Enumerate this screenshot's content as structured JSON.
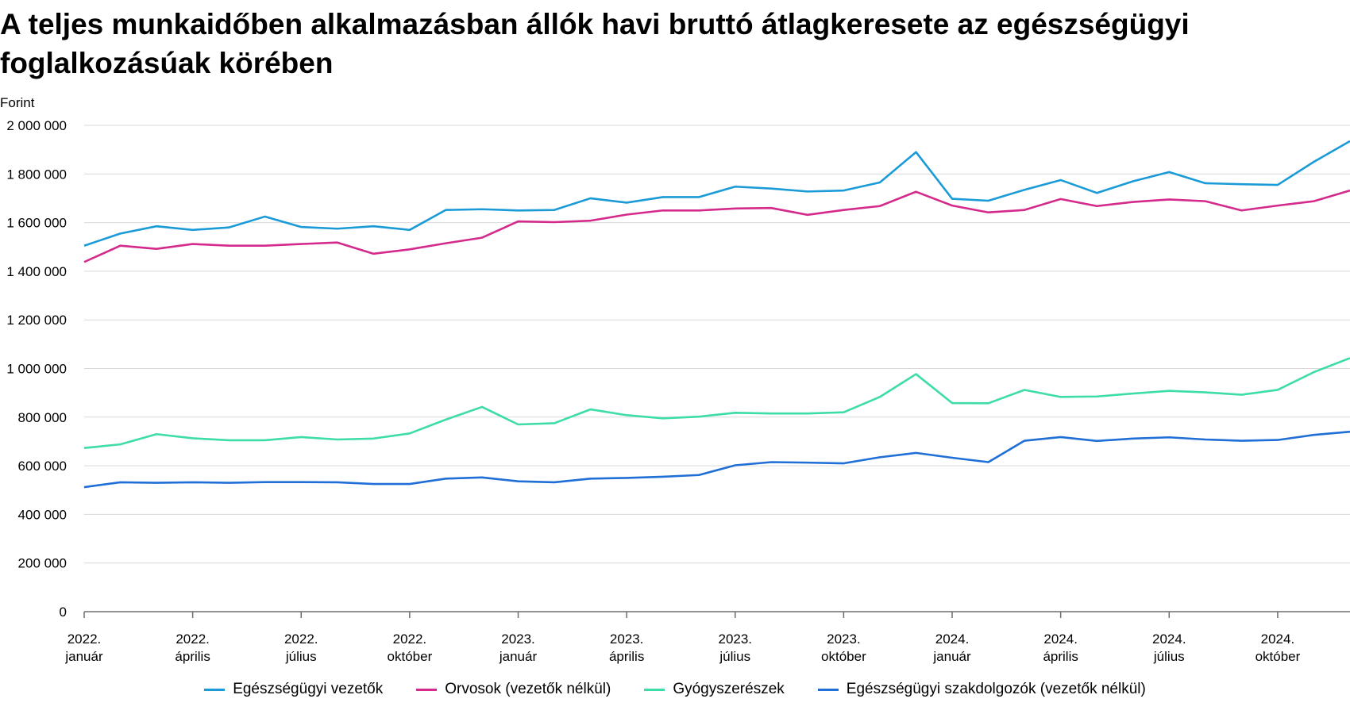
{
  "chart_data": {
    "type": "line",
    "title": "A teljes munkaidőben alkalmazásban állók havi bruttó átlagkeresete az egészségügyi foglalkozásúak körében",
    "ylabel": "Forint",
    "xlabel": "",
    "ylim": [
      0,
      2000000
    ],
    "yticks": [
      0,
      200000,
      400000,
      600000,
      800000,
      1000000,
      1200000,
      1400000,
      1600000,
      1800000,
      2000000
    ],
    "ytick_labels": [
      "0",
      "200 000",
      "400 000",
      "600 000",
      "800 000",
      "1 000 000",
      "1 200 000",
      "1 400 000",
      "1 600 000",
      "1 800 000",
      "2 000 000"
    ],
    "x_labels": [
      {
        "index": 0,
        "year": "2022.",
        "month": "január"
      },
      {
        "index": 3,
        "year": "2022.",
        "month": "április"
      },
      {
        "index": 6,
        "year": "2022.",
        "month": "július"
      },
      {
        "index": 9,
        "year": "2022.",
        "month": "október"
      },
      {
        "index": 12,
        "year": "2023.",
        "month": "január"
      },
      {
        "index": 15,
        "year": "2023.",
        "month": "április"
      },
      {
        "index": 18,
        "year": "2023.",
        "month": "július"
      },
      {
        "index": 21,
        "year": "2023.",
        "month": "október"
      },
      {
        "index": 24,
        "year": "2024.",
        "month": "január"
      },
      {
        "index": 27,
        "year": "2024.",
        "month": "április"
      },
      {
        "index": 30,
        "year": "2024.",
        "month": "július"
      },
      {
        "index": 33,
        "year": "2024.",
        "month": "október"
      }
    ],
    "n_points": 36,
    "grid": true,
    "legend_position": "bottom",
    "series": [
      {
        "name": "Egészségügyi vezetők",
        "color": "#1a9bd7",
        "values": [
          1505000,
          1555000,
          1585000,
          1570000,
          1580000,
          1625000,
          1582000,
          1575000,
          1585000,
          1570000,
          1652000,
          1655000,
          1650000,
          1652000,
          1700000,
          1682000,
          1705000,
          1705000,
          1748000,
          1740000,
          1728000,
          1732000,
          1765000,
          1890000,
          1698000,
          1690000,
          1735000,
          1775000,
          1722000,
          1770000,
          1808000,
          1762000,
          1758000,
          1755000,
          1850000,
          1935000
        ]
      },
      {
        "name": "Orvosok (vezetők nélkül)",
        "color": "#d42a8b",
        "values": [
          1438000,
          1505000,
          1492000,
          1512000,
          1505000,
          1505000,
          1512000,
          1518000,
          1472000,
          1490000,
          1515000,
          1538000,
          1605000,
          1602000,
          1608000,
          1633000,
          1650000,
          1650000,
          1658000,
          1660000,
          1632000,
          1652000,
          1668000,
          1727000,
          1670000,
          1642000,
          1652000,
          1697000,
          1668000,
          1685000,
          1695000,
          1688000,
          1650000,
          1670000,
          1688000,
          1732000
        ]
      },
      {
        "name": "Gyógyszerészek",
        "color": "#3ddca8",
        "values": [
          673000,
          688000,
          730000,
          713000,
          705000,
          705000,
          718000,
          708000,
          712000,
          733000,
          790000,
          842000,
          770000,
          775000,
          832000,
          808000,
          795000,
          802000,
          818000,
          815000,
          815000,
          820000,
          883000,
          977000,
          858000,
          857000,
          912000,
          883000,
          885000,
          897000,
          908000,
          902000,
          892000,
          912000,
          985000,
          1043000
        ]
      },
      {
        "name": "Egészségügyi szakdolgozók (vezetők nélkül)",
        "color": "#1f6fd6",
        "values": [
          512000,
          532000,
          530000,
          532000,
          530000,
          533000,
          533000,
          532000,
          525000,
          525000,
          547000,
          552000,
          536000,
          532000,
          547000,
          550000,
          555000,
          562000,
          602000,
          615000,
          613000,
          610000,
          635000,
          653000,
          633000,
          615000,
          703000,
          718000,
          702000,
          712000,
          717000,
          708000,
          703000,
          706000,
          727000,
          740000
        ]
      }
    ]
  }
}
